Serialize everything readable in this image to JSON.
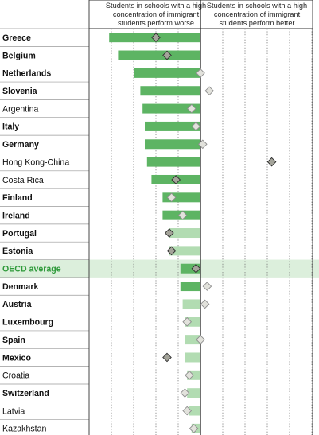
{
  "chart_data": {
    "type": "bar",
    "header_left": [
      "Students in schools with a high",
      "concentration of immigrant",
      "students perform worse"
    ],
    "header_right": [
      "Students in schools with a high",
      "concentration of immigrant",
      "students perform better"
    ],
    "xlim": [
      -50,
      60
    ],
    "gridlines": [
      -40,
      -30,
      -20,
      -10,
      10,
      20,
      30,
      40,
      50
    ],
    "categories": [
      "Greece",
      "Belgium",
      "Netherlands",
      "Slovenia",
      "Argentina",
      "Italy",
      "Germany",
      "Hong Kong-China",
      "Costa Rica",
      "Finland",
      "Ireland",
      "Portugal",
      "Estonia",
      "OECD average",
      "Denmark",
      "Austria",
      "Luxembourg",
      "Spain",
      "Mexico",
      "Croatia",
      "Switzerland",
      "Latvia",
      "Kazakhstan"
    ],
    "bold": [
      true,
      true,
      true,
      true,
      false,
      true,
      true,
      false,
      false,
      true,
      true,
      true,
      true,
      true,
      true,
      true,
      true,
      true,
      true,
      false,
      true,
      false,
      false
    ],
    "highlight_index": 13,
    "values": [
      -41,
      -37,
      -30,
      -27,
      -26,
      -25,
      -25,
      -24,
      -22,
      -17,
      -17,
      -14,
      -14,
      -9,
      -9,
      -8,
      -7,
      -7,
      -7,
      -6,
      -6,
      -5,
      -4
    ],
    "significant": [
      true,
      true,
      true,
      true,
      true,
      true,
      true,
      true,
      true,
      true,
      true,
      false,
      false,
      true,
      true,
      false,
      false,
      false,
      false,
      false,
      false,
      false,
      false
    ],
    "markers": [
      -20,
      -15,
      0,
      4,
      -4,
      -2,
      1,
      32,
      -11,
      -13,
      -8,
      -14,
      -13,
      -2,
      3,
      2,
      -6,
      0,
      -15,
      -5,
      -7,
      -6,
      -3
    ],
    "marker_significant": [
      true,
      true,
      false,
      false,
      false,
      false,
      false,
      true,
      true,
      false,
      false,
      true,
      true,
      true,
      false,
      false,
      false,
      false,
      true,
      false,
      false,
      false,
      false
    ],
    "colors": {
      "bar_significant": "#5db463",
      "bar_not_significant": "#b2dcb2",
      "marker_significant": "#a4a49a",
      "marker_not_significant": "#e2e2dc",
      "highlight_band": "#dcefdc",
      "oecd_label": "#2e9a3a"
    }
  }
}
